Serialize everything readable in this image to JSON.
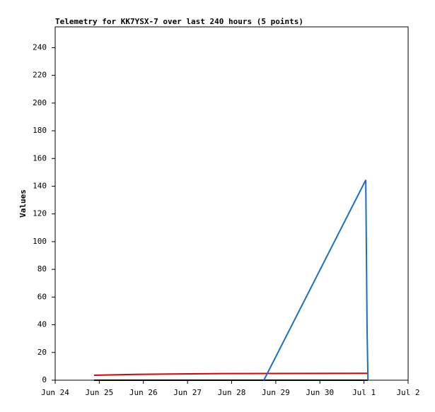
{
  "chart_data": {
    "type": "line",
    "title": "Telemetry for KK7YSX-7 over last 240 hours (5 points)",
    "ylabel": "Values",
    "xlim": [
      0,
      8
    ],
    "xticks": [
      {
        "value": 0,
        "label": "Jun 24"
      },
      {
        "value": 1,
        "label": "Jun 25"
      },
      {
        "value": 2,
        "label": "Jun 26"
      },
      {
        "value": 3,
        "label": "Jun 27"
      },
      {
        "value": 4,
        "label": "Jun 28"
      },
      {
        "value": 5,
        "label": "Jun 29"
      },
      {
        "value": 6,
        "label": "Jun 30"
      },
      {
        "value": 7,
        "label": "Jul 1"
      },
      {
        "value": 8,
        "label": "Jul 2"
      }
    ],
    "ylim": [
      0,
      255
    ],
    "yticks": [
      0,
      20,
      40,
      60,
      80,
      100,
      120,
      140,
      160,
      180,
      200,
      220,
      240
    ],
    "series": [
      {
        "color": "#000000",
        "x": [
          0.88,
          7.09
        ],
        "values": [
          0,
          0
        ]
      },
      {
        "color": "#e00000",
        "x": [
          0.88,
          1.83,
          3.77,
          7.04,
          7.09
        ],
        "values": [
          3.6,
          4.2,
          4.8,
          5.0,
          5.0
        ]
      },
      {
        "color": "#1a6fc4",
        "x": [
          4.73,
          7.04,
          7.05,
          7.07,
          7.09
        ],
        "values": [
          0,
          144.5,
          108,
          36,
          0
        ]
      }
    ]
  }
}
